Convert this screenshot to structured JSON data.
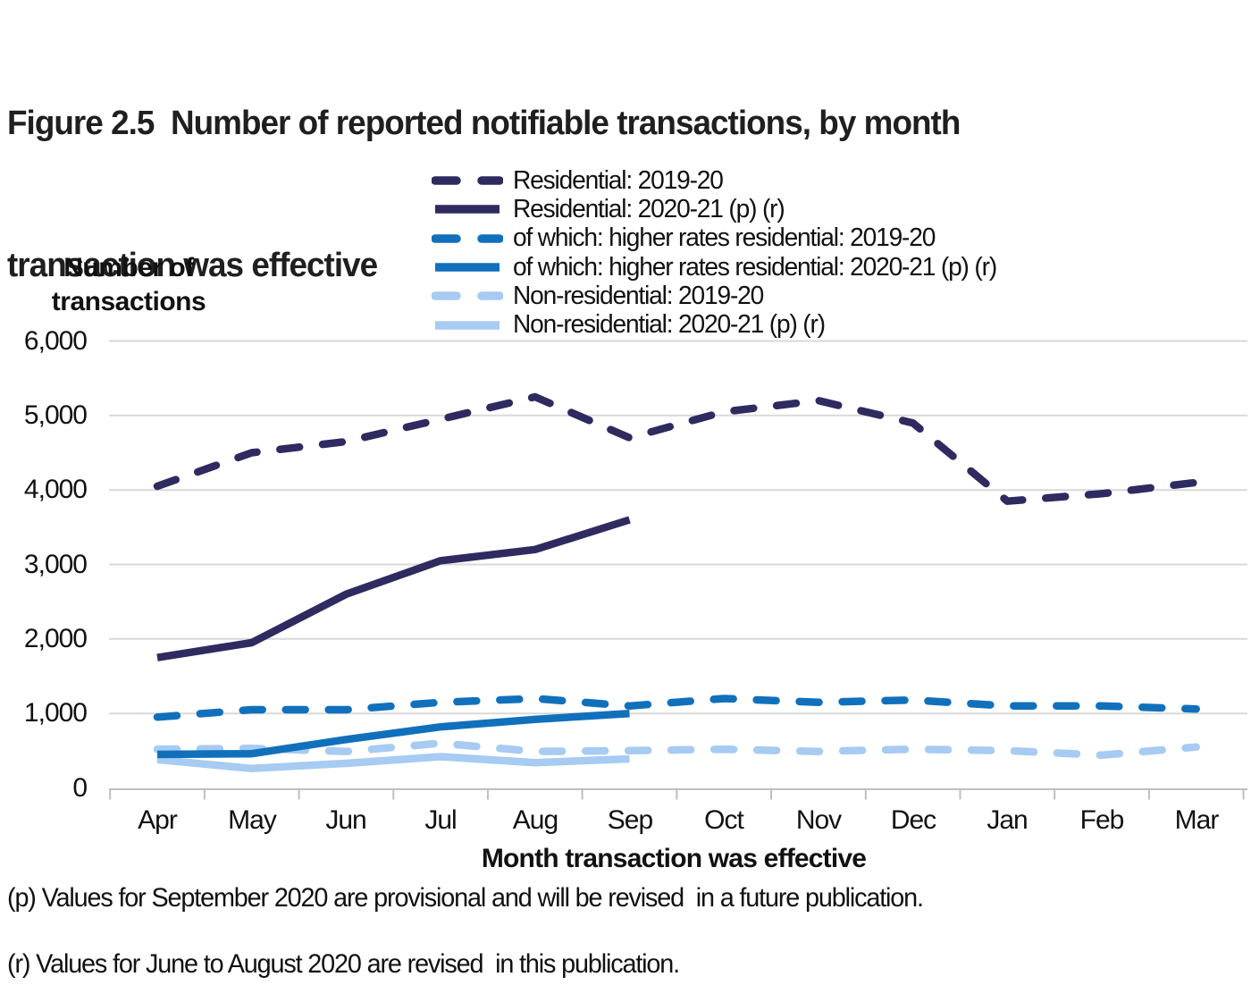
{
  "figure": {
    "title_lines": [
      "Figure 2.5  Number of reported notifiable transactions, by month",
      "transaction was effective"
    ]
  },
  "chart_data": {
    "type": "line",
    "title": "Figure 2.5  Number of reported notifiable transactions, by month transaction was effective",
    "categories": [
      "Apr",
      "May",
      "Jun",
      "Jul",
      "Aug",
      "Sep",
      "Oct",
      "Nov",
      "Dec",
      "Jan",
      "Feb",
      "Mar"
    ],
    "xlabel": "Month transaction was effective",
    "ylabel": "Number of transactions",
    "ylabel_lines": [
      "Number of",
      "transactions"
    ],
    "ylim": [
      0,
      6000
    ],
    "ytick_interval": 1000,
    "ytick_labels": [
      "0",
      "1,000",
      "2,000",
      "3,000",
      "4,000",
      "5,000",
      "6,000"
    ],
    "grid": true,
    "legend_position": "top-center",
    "series": [
      {
        "name": "Residential: 2019-20",
        "style": "dashed",
        "color": "#2F2A5F",
        "values": [
          4050,
          4500,
          4650,
          4950,
          5250,
          4700,
          5050,
          5200,
          4900,
          3850,
          3950,
          4100
        ]
      },
      {
        "name": "Residential: 2020-21 (p) (r)",
        "style": "solid",
        "color": "#2F2A5F",
        "values": [
          1750,
          1950,
          2600,
          3050,
          3200,
          3600
        ]
      },
      {
        "name": "of which: higher rates residential: 2019-20",
        "style": "dashed",
        "color": "#1070BC",
        "values": [
          950,
          1050,
          1050,
          1150,
          1200,
          1100,
          1200,
          1150,
          1180,
          1100,
          1100,
          1060
        ]
      },
      {
        "name": "of which: higher rates residential: 2020-21 (p) (r)",
        "style": "solid",
        "color": "#1070BC",
        "values": [
          450,
          460,
          650,
          820,
          920,
          1000
        ]
      },
      {
        "name": "Non-residential: 2019-20",
        "style": "dashed",
        "color": "#A7CBF2",
        "values": [
          520,
          530,
          490,
          600,
          490,
          500,
          520,
          490,
          520,
          500,
          440,
          550
        ]
      },
      {
        "name": "Non-residential: 2020-21 (p) (r)",
        "style": "solid",
        "color": "#A7CBF2",
        "values": [
          380,
          260,
          330,
          420,
          340,
          390
        ]
      }
    ]
  },
  "footnotes": [
    "(p) Values for September 2020 are provisional and will be revised  in a future publication.",
    "(r) Values for June to August 2020 are revised  in this publication."
  ],
  "colors": {
    "gridline": "#D9D9D9",
    "axis": "#BFBFBF",
    "text": "#111111",
    "navy": "#2F2A5F",
    "blue": "#1070BC",
    "light_blue": "#A7CBF2"
  }
}
